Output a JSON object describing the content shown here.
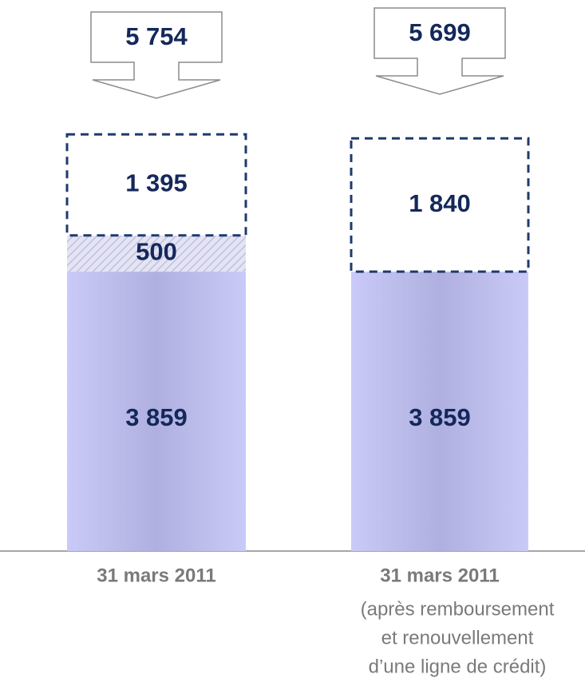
{
  "chart_data": {
    "type": "stacked-bar",
    "categories": [
      "31 mars 2011",
      "31 mars 2011"
    ],
    "category_sublabels": [
      null,
      [
        "(après remboursement",
        "et renouvellement",
        "d’une ligne de crédit)"
      ]
    ],
    "series": [
      {
        "color": "#c8c8f6",
        "values": [
          3859,
          3859
        ],
        "value_labels": [
          "3 859",
          "3 859"
        ]
      },
      {
        "color": "#c8c8f6",
        "pattern": "hatch",
        "values": [
          500,
          null
        ],
        "value_labels": [
          "500",
          null
        ]
      },
      {
        "color": "#1f3a6e",
        "border": "dashed",
        "values": [
          1395,
          1840
        ],
        "value_labels": [
          "1 395",
          "1 840"
        ]
      }
    ],
    "totals": [
      5754,
      5699
    ],
    "total_labels": [
      "5 754",
      "5 699"
    ],
    "ylim": [
      0,
      6000
    ]
  }
}
